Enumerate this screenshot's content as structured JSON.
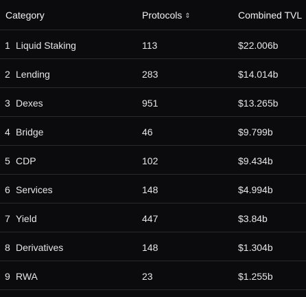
{
  "header": {
    "category_label": "Category",
    "protocols_label": "Protocols",
    "tvl_label": "Combined TVL",
    "sort_icon": "sort-icon"
  },
  "rows": [
    {
      "rank": "1",
      "category": "Liquid Staking",
      "protocols": "113",
      "tvl": "$22.006b"
    },
    {
      "rank": "2",
      "category": "Lending",
      "protocols": "283",
      "tvl": "$14.014b"
    },
    {
      "rank": "3",
      "category": "Dexes",
      "protocols": "951",
      "tvl": "$13.265b"
    },
    {
      "rank": "4",
      "category": "Bridge",
      "protocols": "46",
      "tvl": "$9.799b"
    },
    {
      "rank": "5",
      "category": "CDP",
      "protocols": "102",
      "tvl": "$9.434b"
    },
    {
      "rank": "6",
      "category": "Services",
      "protocols": "148",
      "tvl": "$4.994b"
    },
    {
      "rank": "7",
      "category": "Yield",
      "protocols": "447",
      "tvl": "$3.84b"
    },
    {
      "rank": "8",
      "category": "Derivatives",
      "protocols": "148",
      "tvl": "$1.304b"
    },
    {
      "rank": "9",
      "category": "RWA",
      "protocols": "23",
      "tvl": "$1.255b"
    }
  ]
}
